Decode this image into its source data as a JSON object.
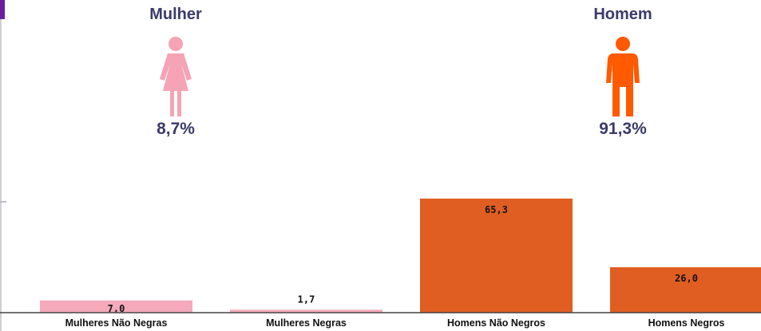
{
  "infographic": {
    "female": {
      "title": "Mulher",
      "percent": "8,7%",
      "icon": "woman-icon",
      "color": "#f5a3b5"
    },
    "male": {
      "title": "Homem",
      "percent": "91,3%",
      "icon": "man-icon",
      "color": "#ff5a00"
    }
  },
  "colors": {
    "female_bar": "#f4aabb",
    "male_bar": "#e05e22",
    "title_text": "#3b3a6b",
    "accent": "#6b1fa0"
  },
  "chart_data": {
    "type": "bar",
    "categories": [
      "Mulheres Não Negras",
      "Mulheres Negras",
      "Homens Não Negros",
      "Homens Negros"
    ],
    "values": [
      7.0,
      1.7,
      65.3,
      26.0
    ],
    "value_labels": [
      "7,0",
      "1,7",
      "65,3",
      "26,0"
    ],
    "bar_colors": [
      "#f4aabb",
      "#f4aabb",
      "#e05e22",
      "#e05e22"
    ],
    "title": "",
    "xlabel": "",
    "ylabel": "",
    "grid": false
  }
}
